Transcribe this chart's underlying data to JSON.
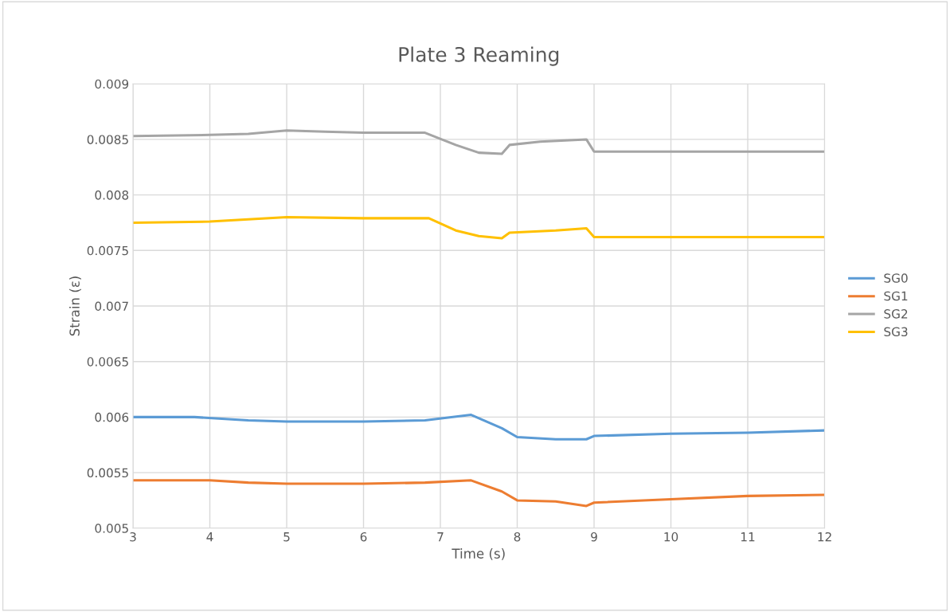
{
  "chart_data": {
    "type": "line",
    "title": "Plate 3 Reaming",
    "xlabel": "Time (s)",
    "ylabel": "Strain (ε)",
    "xlim": [
      3,
      12
    ],
    "xticks": [
      3,
      4,
      5,
      6,
      7,
      8,
      9,
      10,
      11,
      12
    ],
    "ylim": [
      0.005,
      0.009
    ],
    "yticks": [
      0.005,
      0.0055,
      0.006,
      0.0065,
      0.007,
      0.0075,
      0.008,
      0.0085,
      0.009
    ],
    "grid": true,
    "legend": "right",
    "marker": "none",
    "line_style": "solid",
    "series": [
      {
        "name": "SG0",
        "color": "#5b9bd5",
        "x": [
          3,
          3.8,
          4.5,
          5,
          6,
          6.8,
          7.4,
          7.8,
          8,
          8.5,
          8.9,
          9,
          10,
          11,
          12
        ],
        "values": [
          0.006,
          0.006,
          0.00597,
          0.00596,
          0.00596,
          0.00597,
          0.00602,
          0.0059,
          0.00582,
          0.0058,
          0.0058,
          0.00583,
          0.00585,
          0.00586,
          0.00588
        ]
      },
      {
        "name": "SG1",
        "color": "#ed7d31",
        "x": [
          3,
          4,
          4.5,
          5,
          6,
          6.8,
          7.4,
          7.8,
          8,
          8.5,
          8.9,
          9,
          10,
          11,
          12
        ],
        "values": [
          0.00543,
          0.00543,
          0.00541,
          0.0054,
          0.0054,
          0.00541,
          0.00543,
          0.00533,
          0.00525,
          0.00524,
          0.0052,
          0.00523,
          0.00526,
          0.00529,
          0.0053
        ]
      },
      {
        "name": "SG2",
        "color": "#a5a5a5",
        "x": [
          3,
          4,
          4.5,
          5,
          5.5,
          6,
          6.8,
          7.2,
          7.5,
          7.8,
          7.9,
          8.3,
          8.9,
          9,
          12
        ],
        "values": [
          0.00853,
          0.00854,
          0.00855,
          0.00858,
          0.00857,
          0.00856,
          0.00856,
          0.00845,
          0.00838,
          0.00837,
          0.00845,
          0.00848,
          0.0085,
          0.00839,
          0.00839
        ]
      },
      {
        "name": "SG3",
        "color": "#ffc000",
        "x": [
          3,
          4,
          5,
          6,
          6.85,
          7.2,
          7.5,
          7.8,
          7.9,
          8.5,
          8.9,
          9,
          12
        ],
        "values": [
          0.00775,
          0.00776,
          0.0078,
          0.00779,
          0.00779,
          0.00768,
          0.00763,
          0.00761,
          0.00766,
          0.00768,
          0.0077,
          0.00762,
          0.00762
        ]
      }
    ]
  }
}
